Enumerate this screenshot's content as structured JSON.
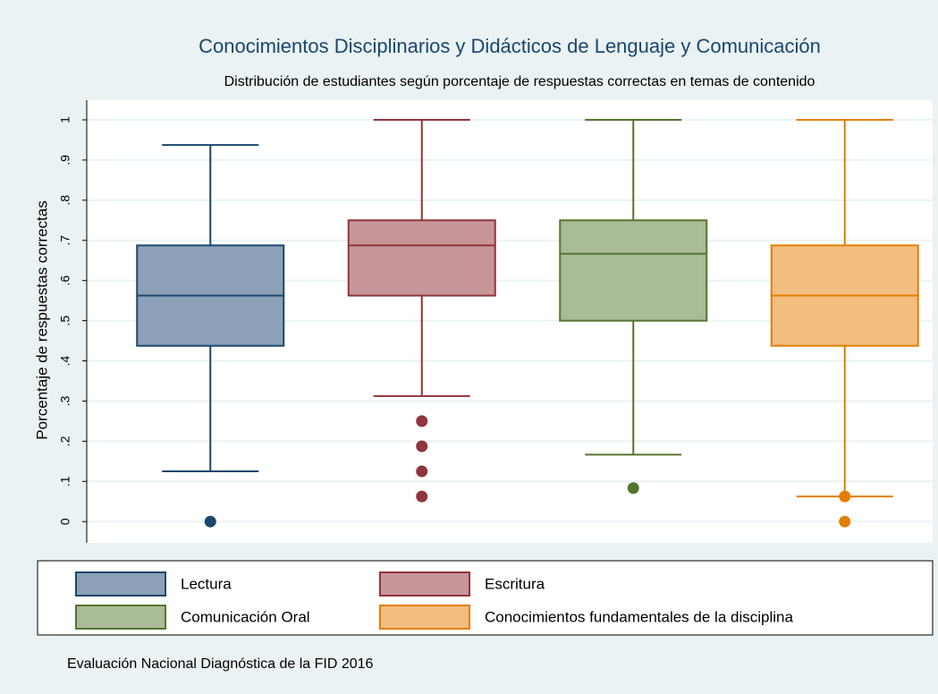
{
  "chart_data": {
    "type": "box",
    "title": "Conocimientos Disciplinarios y Didácticos de Lenguaje y Comunicación",
    "subtitle": "Distribución de estudiantes según porcentaje de respuestas correctas en temas de contenido",
    "ylabel": "Porcentaje de respuestas correctas",
    "note": "Evaluación Nacional Diagnóstica de la FID 2016",
    "ylim": [
      -0.053,
      1.049
    ],
    "yticks": [
      0,
      {
        "value": 0.1,
        "label": ".1"
      },
      {
        "value": 0.2,
        "label": ".2"
      },
      {
        "value": 0.3,
        "label": ".3"
      },
      {
        "value": 0.4,
        "label": ".4"
      },
      {
        "value": 0.5,
        "label": ".5"
      },
      {
        "value": 0.6,
        "label": ".6"
      },
      {
        "value": 0.7,
        "label": ".7"
      },
      {
        "value": 0.8,
        "label": ".8"
      },
      {
        "value": 0.9,
        "label": ".9"
      },
      1
    ],
    "grid": true,
    "legend_position": "bottom",
    "series": [
      {
        "name": "Lectura",
        "color": "#1a476f",
        "fill": "#8ca1b7",
        "min": 0.125,
        "q1": 0.4375,
        "median": 0.5625,
        "q3": 0.6875,
        "max": 0.9375,
        "outliers": [
          0
        ]
      },
      {
        "name": "Escritura",
        "color": "#90353b",
        "fill": "#c8969a",
        "min": 0.3125,
        "q1": 0.5625,
        "median": 0.6875,
        "q3": 0.75,
        "max": 1,
        "outliers": [
          0.25,
          0.1875,
          0.125,
          0.0625
        ]
      },
      {
        "name": "Comunicación Oral",
        "color": "#55752f",
        "fill": "#aabb97",
        "min": 0.1667,
        "q1": 0.5,
        "median": 0.6667,
        "q3": 0.75,
        "max": 1,
        "outliers": [
          0.0833
        ]
      },
      {
        "name": "Conocimientos fundamentales de la disciplina",
        "color": "#e37e00",
        "fill": "#f1be7f",
        "min": 0.0625,
        "q1": 0.4375,
        "median": 0.5625,
        "q3": 0.6875,
        "max": 1,
        "outliers": [
          0.0625,
          0
        ]
      }
    ]
  }
}
